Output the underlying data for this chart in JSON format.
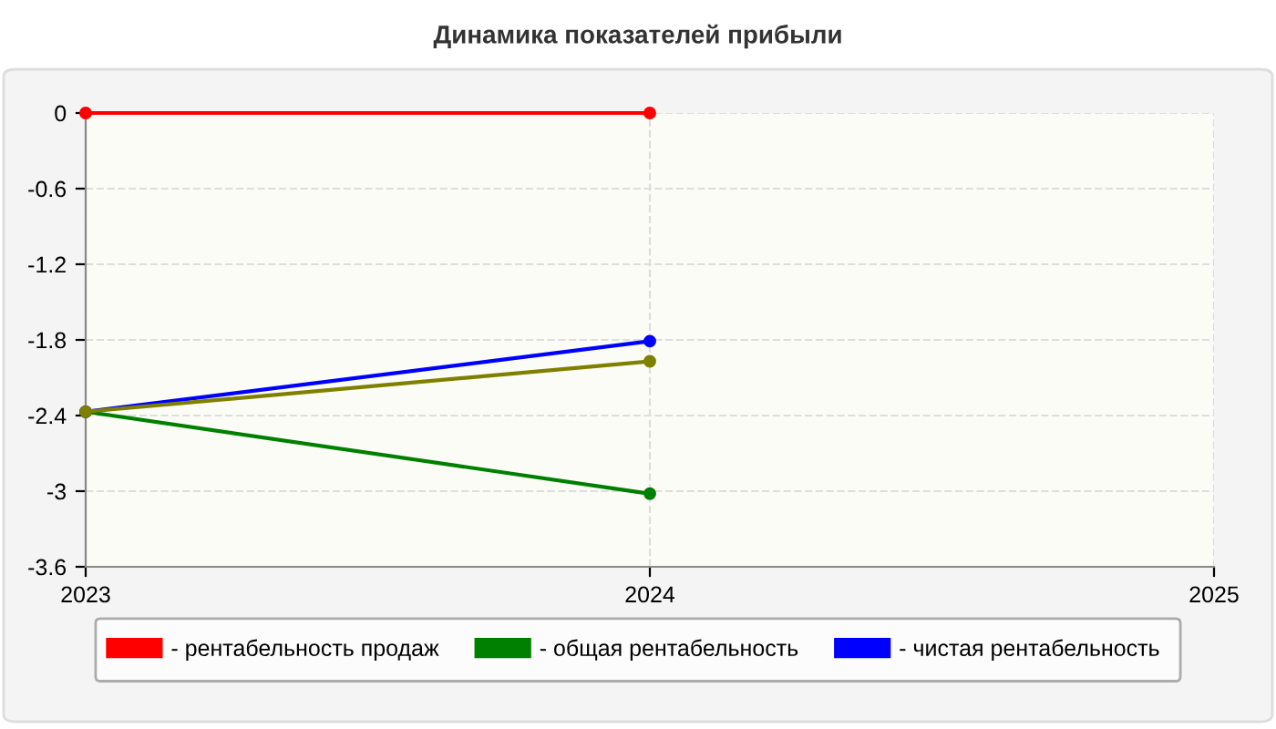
{
  "chart_data": {
    "type": "line",
    "title": "Динамика показателей прибыли",
    "x": [
      2023,
      2024
    ],
    "series": [
      {
        "name": "- рентабельность продаж",
        "color": "#ff0000",
        "values": [
          0,
          0
        ]
      },
      {
        "name": "- общая рентабельность",
        "color": "#008000",
        "values": [
          -2.37,
          -3.02
        ]
      },
      {
        "name": "- чистая рентабельность",
        "color": "#0000ff",
        "values": [
          -2.37,
          -1.81
        ]
      },
      {
        "color": "#808000",
        "values": [
          -2.37,
          -1.97
        ]
      }
    ],
    "xlim": [
      2023,
      2025
    ],
    "xticks": [
      2023,
      2024,
      2025
    ],
    "ylim": [
      -3.6,
      0
    ],
    "yticks": [
      -3.6,
      -3,
      -2.4,
      -1.8,
      -1.2,
      -0.6,
      0
    ],
    "grid": true,
    "legend": "bottom",
    "marker": "circle",
    "line_style": "solid"
  }
}
